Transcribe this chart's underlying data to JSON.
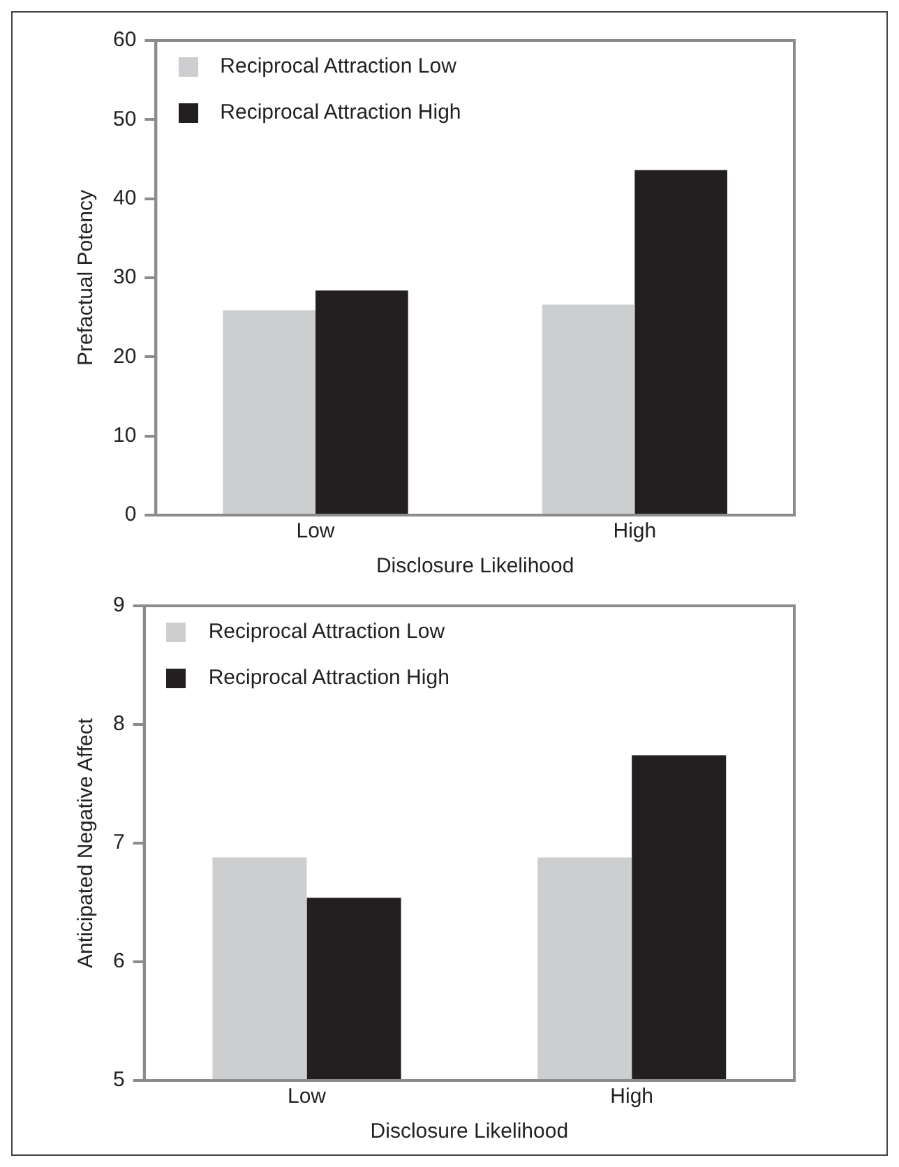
{
  "chart_data": [
    {
      "type": "bar",
      "xlabel": "Disclosure Likelihood",
      "ylabel": "Prefactual Potency",
      "categories": [
        "Low",
        "High"
      ],
      "series": [
        {
          "name": "Reciprocal Attraction Low",
          "color": "#cdcecf",
          "values": [
            25.9,
            26.6
          ]
        },
        {
          "name": "Reciprocal Attraction High",
          "color": "#231f20",
          "values": [
            28.4,
            43.6
          ]
        }
      ],
      "ylim": [
        0,
        60
      ],
      "yticks": [
        0,
        10,
        20,
        30,
        40,
        50,
        60
      ],
      "grid": false,
      "legend": "top left"
    },
    {
      "type": "bar",
      "xlabel": "Disclosure Likelihood",
      "ylabel": "Anticipated Negative Affect",
      "categories": [
        "Low",
        "High"
      ],
      "series": [
        {
          "name": "Reciprocal Attraction Low",
          "color": "#cdcecf",
          "values": [
            6.88,
            6.88
          ]
        },
        {
          "name": "Reciprocal Attraction High",
          "color": "#231f20",
          "values": [
            6.54,
            7.74
          ]
        }
      ],
      "ylim": [
        5,
        9
      ],
      "yticks": [
        5,
        6,
        7,
        8,
        9
      ],
      "grid": false,
      "legend": "top left"
    }
  ]
}
